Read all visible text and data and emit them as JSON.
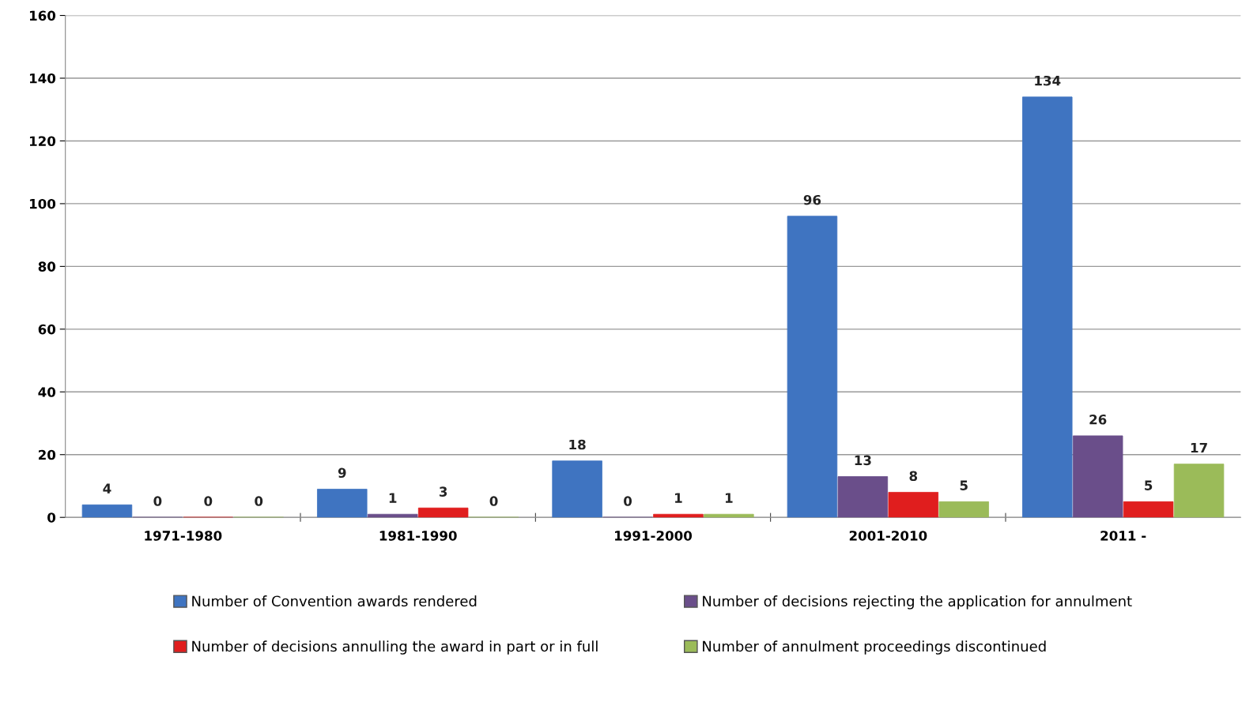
{
  "chart_data": {
    "type": "bar",
    "categories": [
      "1971-1980",
      "1981-1990",
      "1991-2000",
      "2001-2010",
      "2011 -"
    ],
    "series": [
      {
        "name": "Number of Convention awards rendered",
        "color": "#3f74c1",
        "values": [
          4,
          9,
          18,
          96,
          134
        ]
      },
      {
        "name": "Number of decisions rejecting the application for annulment",
        "color": "#6a4e8a",
        "values": [
          0,
          1,
          0,
          13,
          26
        ]
      },
      {
        "name": "Number of decisions annulling the award in part or in full",
        "color": "#e01e1e",
        "values": [
          0,
          3,
          1,
          8,
          5
        ]
      },
      {
        "name": "Number of annulment proceedings discontinued",
        "color": "#9bbb59",
        "values": [
          0,
          0,
          1,
          5,
          17
        ]
      }
    ],
    "ylim": [
      0,
      160
    ],
    "yticks": [
      0,
      20,
      40,
      60,
      80,
      100,
      120,
      140,
      160
    ],
    "grid": "y",
    "legend": "bottom",
    "data_labels": true
  }
}
